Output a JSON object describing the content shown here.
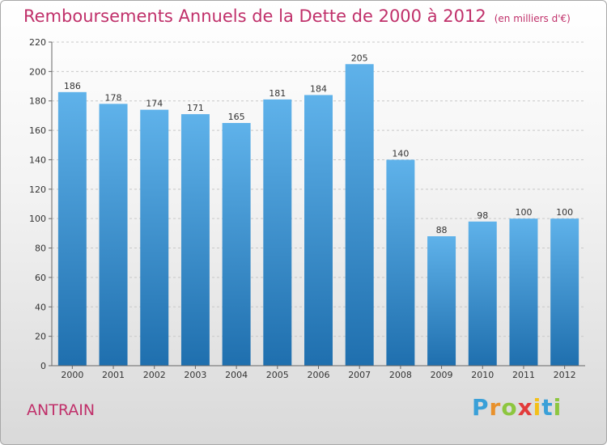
{
  "header": {
    "title": "Remboursements Annuels de la Dette de 2000 à 2012",
    "subtitle": "(en milliers d'€)"
  },
  "location": "ANTRAIN",
  "logo": {
    "text": "Proxiti",
    "letters": [
      "P",
      "r",
      "o",
      "x",
      "i",
      "t",
      "i"
    ]
  },
  "colors": {
    "title": "#c0306a",
    "bar_top": "#5fb2ea",
    "bar_bottom": "#1f6fae"
  },
  "chart_data": {
    "type": "bar",
    "categories": [
      "2000",
      "2001",
      "2002",
      "2003",
      "2004",
      "2005",
      "2006",
      "2007",
      "2008",
      "2009",
      "2010",
      "2011",
      "2012"
    ],
    "values": [
      186,
      178,
      174,
      171,
      165,
      181,
      184,
      205,
      140,
      88,
      98,
      100,
      100
    ],
    "data_labels": [
      "186",
      "178",
      "174",
      "171",
      "165",
      "181",
      "184",
      "205",
      "140",
      "88",
      "98",
      "100",
      "100"
    ],
    "title": "Remboursements Annuels de la Dette de 2000 à 2012",
    "xlabel": "",
    "ylabel": "",
    "ylim": [
      0,
      220
    ],
    "yticks": [
      0,
      20,
      40,
      60,
      80,
      100,
      120,
      140,
      160,
      180,
      200,
      220
    ],
    "grid": true
  }
}
